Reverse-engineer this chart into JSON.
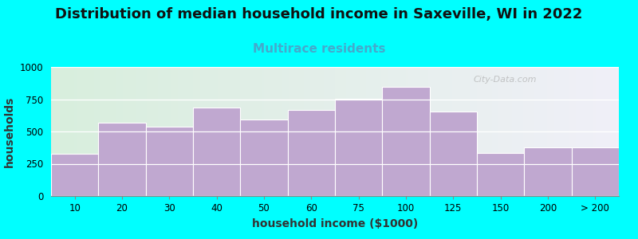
{
  "title": "Distribution of median household income in Saxeville, WI in 2022",
  "subtitle": "Multirace residents",
  "xlabel": "household income ($1000)",
  "ylabel": "households",
  "background_color": "#00FFFF",
  "bar_color": "#C0A8D0",
  "bar_edge_color": "#ffffff",
  "categories": [
    "10",
    "20",
    "30",
    "40",
    "50",
    "60",
    "75",
    "100",
    "125",
    "150",
    "200",
    "> 200"
  ],
  "values": [
    330,
    570,
    535,
    685,
    590,
    665,
    755,
    845,
    655,
    335,
    375,
    375
  ],
  "ylim": [
    0,
    1000
  ],
  "yticks": [
    0,
    250,
    500,
    750,
    1000
  ],
  "title_fontsize": 13,
  "subtitle_fontsize": 11,
  "subtitle_color": "#44AACC",
  "axis_label_fontsize": 10,
  "tick_fontsize": 8.5,
  "watermark": "City-Data.com",
  "plot_bg_left": "#d8eedd",
  "plot_bg_right": "#f0f0f8"
}
